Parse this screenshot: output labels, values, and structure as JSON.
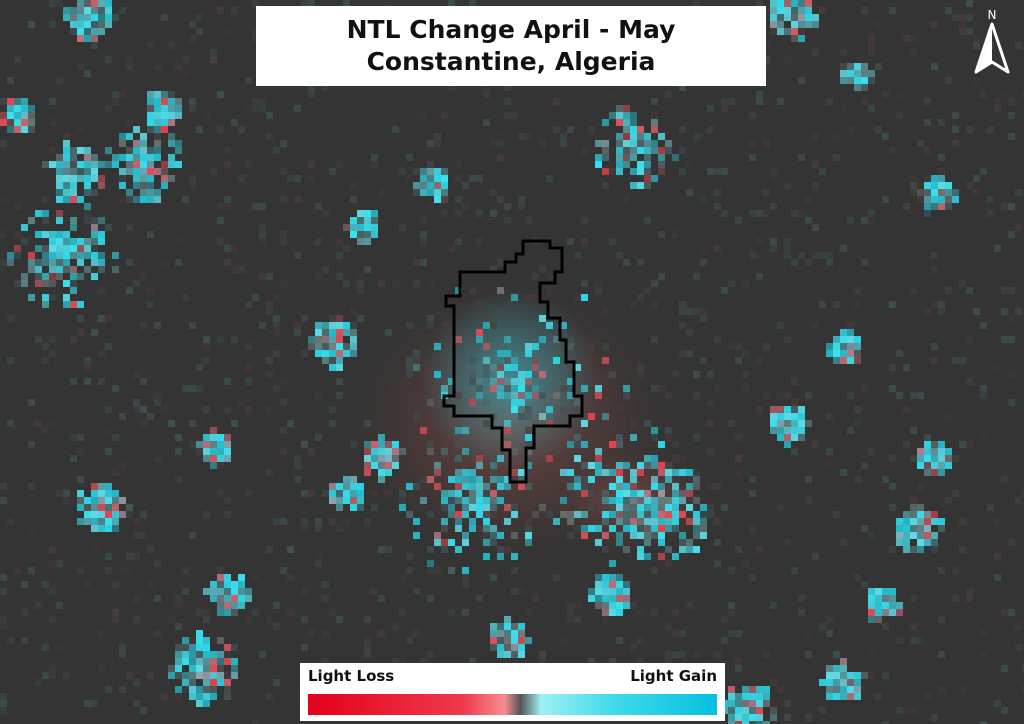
{
  "title": {
    "line1": "NTL Change April - May",
    "line2": "Constantine, Algeria"
  },
  "north_arrow": {
    "label": "N",
    "icon": "north-arrow-icon"
  },
  "legend": {
    "low_label": "Light Loss",
    "high_label": "Light Gain",
    "colors": [
      "#e3001b",
      "#ef3a4c",
      "#f68b90",
      "#555555",
      "#9ef0f4",
      "#3fd9ea",
      "#06bfe0"
    ]
  },
  "map": {
    "background_color": "#343434",
    "gain_color": "#2fd6e6",
    "loss_color": "#e8424e",
    "boundary_color": "#000000"
  }
}
